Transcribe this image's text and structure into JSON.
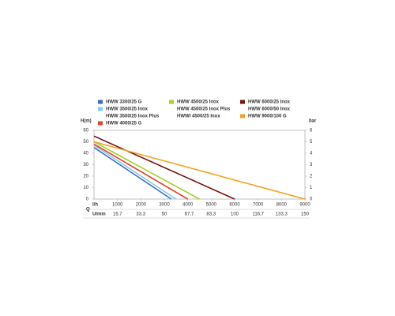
{
  "chart_data": {
    "type": "line",
    "xlabel": "l/h",
    "x2label": "U/min",
    "qlabel": "Q",
    "ylabel": "H(m)",
    "y2label": "bar",
    "xlim": [
      0,
      9000
    ],
    "xticks": [
      1000,
      2000,
      3000,
      4000,
      5000,
      6000,
      7000,
      8000,
      9000
    ],
    "x2lim": [
      0,
      150
    ],
    "x2ticks": [
      {
        "value": 16.7,
        "label": "16,7"
      },
      {
        "value": 33.3,
        "label": "33,3"
      },
      50,
      {
        "value": 67.7,
        "label": "67,7"
      },
      {
        "value": 83.3,
        "label": "83,3"
      },
      100,
      {
        "value": 116.7,
        "label": "116,7"
      },
      {
        "value": 133.3,
        "label": "133,3"
      },
      150
    ],
    "ylim": [
      0,
      60
    ],
    "yticks": [
      0,
      10,
      20,
      30,
      40,
      50,
      60
    ],
    "y2lim": [
      0,
      6
    ],
    "y2ticks": [
      0,
      1,
      2,
      3,
      4,
      5,
      6
    ],
    "series": [
      {
        "name": "HWW 3300/25 G",
        "color": "#3a6fc4",
        "x": [
          0,
          3300
        ],
        "values": [
          45,
          0
        ]
      },
      {
        "name": "HWW 3500/25 Inox",
        "color": "#8ccbea",
        "x": [
          0,
          3500
        ],
        "values": [
          47,
          0
        ]
      },
      {
        "name": "HWW 3500/25 Inox Plus"
      },
      {
        "name": "HWW 4000/25 G",
        "color": "#e2452a",
        "x": [
          0,
          4000
        ],
        "values": [
          48,
          0
        ]
      },
      {
        "name": "HWW 4500/25 Inox",
        "color": "#a8d030",
        "x": [
          0,
          4500
        ],
        "values": [
          50,
          0
        ]
      },
      {
        "name": "HWW 4500/25 Inox Plus"
      },
      {
        "name": "HWWI 4500/25 Inox"
      },
      {
        "name": "HWW 6000/25 Inox",
        "color": "#7a1414",
        "x": [
          0,
          6000
        ],
        "values": [
          55,
          0
        ]
      },
      {
        "name": "HWW 6000/50 Inox"
      },
      {
        "name": "HWW 9000/100 G",
        "color": "#f2a21c",
        "x": [
          0,
          9000
        ],
        "values": [
          50,
          0
        ]
      }
    ]
  }
}
